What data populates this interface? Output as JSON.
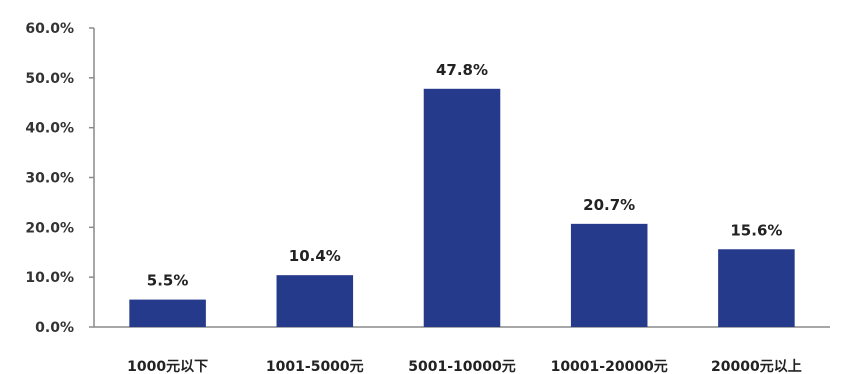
{
  "chart_data": {
    "type": "bar",
    "categories": [
      "1000元以下",
      "1001-5000元",
      "5001-10000元",
      "10001-20000元",
      "20000元以上"
    ],
    "values": [
      5.5,
      10.4,
      47.8,
      20.7,
      15.6
    ],
    "data_labels": [
      "5.5%",
      "10.4%",
      "47.8%",
      "20.7%",
      "15.6%"
    ],
    "y_ticks": [
      "0.0%",
      "10.0%",
      "20.0%",
      "30.0%",
      "40.0%",
      "50.0%",
      "60.0%"
    ],
    "ylim": [
      0,
      60
    ],
    "bar_color": "#263a8c",
    "grid": false,
    "legend": "none"
  }
}
